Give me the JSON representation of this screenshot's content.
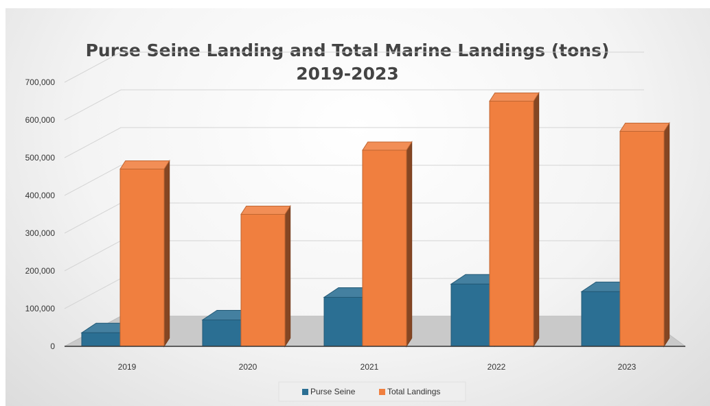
{
  "chart_data": {
    "type": "bar",
    "title": "Purse Seine Landing and Total Marine Landings (tons)",
    "subtitle": "2019-2023",
    "categories": [
      "2019",
      "2020",
      "2021",
      "2022",
      "2023"
    ],
    "series": [
      {
        "name": "Purse Seine",
        "values": [
          36000,
          70000,
          130000,
          165000,
          145000
        ],
        "color": "#2b6f93"
      },
      {
        "name": "Total Landings",
        "values": [
          470000,
          350000,
          520000,
          650000,
          570000
        ],
        "color": "#f07f3f"
      }
    ],
    "ylim": [
      0,
      700000
    ],
    "yticks": [
      "0",
      "100,000",
      "200,000",
      "300,000",
      "400,000",
      "500,000",
      "600,000",
      "700,000"
    ],
    "grid": true,
    "legend_position": "bottom",
    "style": "3d-column"
  }
}
